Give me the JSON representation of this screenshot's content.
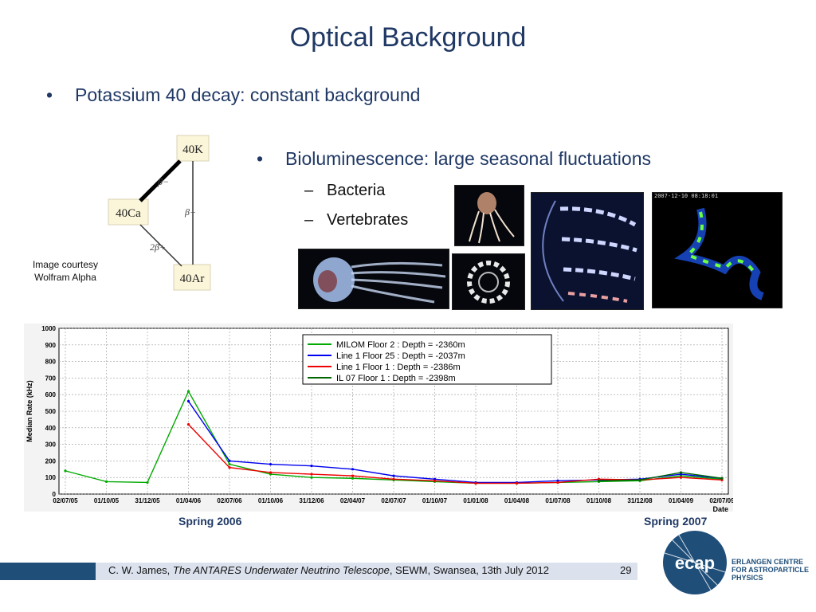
{
  "slide": {
    "title": "Optical Background",
    "bullet1": "Potassium 40 decay: constant background",
    "bullet2": "Bioluminescence: large seasonal fluctuations",
    "sub1": "Bacteria",
    "sub2": "Vertebrates",
    "bullet_marker": "•",
    "dash_marker": "–",
    "courtesy_line1": "Image courtesy",
    "courtesy_line2": "Wolfram Alpha",
    "spring2006": "Spring 2006",
    "spring2007": "Spring 2007"
  },
  "decay": {
    "k": "40K",
    "ca": "40Ca",
    "ar": "40Ar",
    "beta_minus": "β−",
    "beta_plus": "β+",
    "two_beta": "2β+"
  },
  "footer": {
    "author": "C. W. James, ",
    "talk": "The ANTARES Underwater Neutrino Telescope",
    "rest": ", SEWM, Swansea, 13th July 2012",
    "page": "29"
  },
  "logo": {
    "name": "ecap",
    "line1": "ERLANGEN CENTRE",
    "line2": "FOR ASTROPARTICLE",
    "line3": "PHYSICS"
  },
  "photo_caption": "2007-12-10 08:18:01",
  "chart_data": {
    "type": "line",
    "ylabel": "Median Rate (kHz)",
    "xlabel": "Date",
    "ylim": [
      0,
      1000
    ],
    "yticks": [
      "0",
      "100",
      "200",
      "300",
      "400",
      "500",
      "600",
      "700",
      "800",
      "900",
      "1000"
    ],
    "xticks": [
      "02/07/05",
      "01/10/05",
      "31/12/05",
      "01/04/06",
      "02/07/06",
      "01/10/06",
      "31/12/06",
      "02/04/07",
      "02/07/07",
      "01/10/07",
      "01/01/08",
      "01/04/08",
      "01/07/08",
      "01/10/08",
      "31/12/08",
      "01/04/09",
      "02/07/09"
    ],
    "grid": true,
    "legend_position": "top-right",
    "series": [
      {
        "name": "MILOM Floor 2 : Depth = -2360m",
        "color": "#00aa00",
        "x": [
          "02/07/05",
          "01/10/05",
          "31/12/05",
          "01/04/06",
          "02/07/06",
          "01/10/06",
          "31/12/06",
          "02/04/07",
          "02/07/07",
          "01/10/07",
          "01/01/08",
          "01/04/08",
          "01/07/08",
          "01/10/08",
          "31/12/08",
          "01/04/09",
          "02/07/09"
        ],
        "values": [
          140,
          75,
          70,
          620,
          180,
          120,
          100,
          95,
          85,
          75,
          65,
          65,
          70,
          75,
          80,
          110,
          90
        ]
      },
      {
        "name": "Line 1 Floor 25 : Depth = -2037m",
        "color": "#0000ee",
        "x": [
          "01/04/06",
          "02/07/06",
          "01/10/06",
          "31/12/06",
          "02/04/07",
          "02/07/07",
          "01/10/07",
          "01/01/08",
          "01/04/08",
          "01/07/08",
          "01/10/08",
          "31/12/08",
          "01/04/09",
          "02/07/09"
        ],
        "values": [
          560,
          200,
          180,
          170,
          150,
          110,
          90,
          70,
          70,
          80,
          85,
          90,
          120,
          95
        ]
      },
      {
        "name": "Line 1 Floor 1    : Depth = -2386m",
        "color": "#ee0000",
        "x": [
          "01/04/06",
          "02/07/06",
          "01/10/06",
          "31/12/06",
          "02/04/07",
          "02/07/07",
          "01/10/07",
          "01/01/08",
          "01/04/08",
          "01/07/08",
          "01/10/08",
          "31/12/08",
          "01/04/09",
          "02/07/09"
        ],
        "values": [
          420,
          160,
          130,
          120,
          110,
          90,
          80,
          65,
          65,
          70,
          90,
          85,
          100,
          85
        ]
      },
      {
        "name": "IL 07   Floor 1    : Depth = -2398m",
        "color": "#006600",
        "x": [
          "01/10/08",
          "31/12/08",
          "01/04/09",
          "02/07/09"
        ],
        "values": [
          80,
          85,
          130,
          95
        ]
      }
    ]
  }
}
